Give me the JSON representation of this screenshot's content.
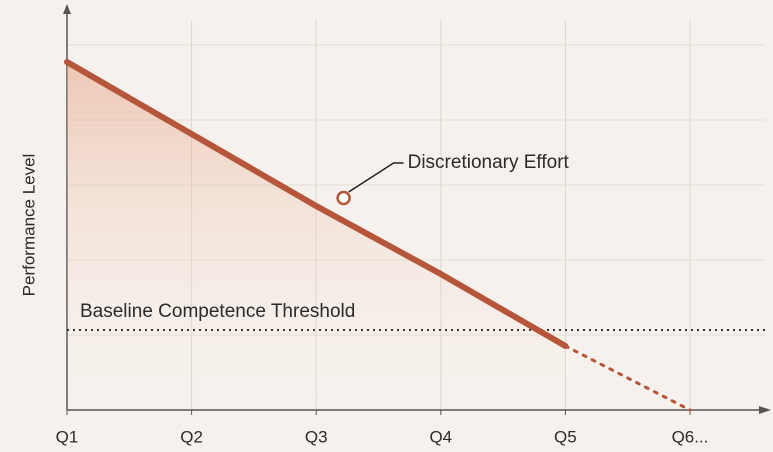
{
  "chart_data": {
    "type": "line",
    "y_label": "Performance Level",
    "categories": [
      "Q1",
      "Q2",
      "Q3",
      "Q4",
      "Q5",
      "Q6..."
    ],
    "series": [
      {
        "color": "#b5553a",
        "style": "solid",
        "values": [
          87,
          69,
          51,
          34,
          16,
          null
        ]
      },
      {
        "color": "#b5553a",
        "style": "dotted",
        "values": [
          null,
          null,
          null,
          null,
          16,
          0
        ]
      }
    ],
    "ylim": [
      0,
      100
    ],
    "threshold": {
      "value": 20,
      "label": "Baseline Competence Threshold"
    },
    "annotation": {
      "text": "Discretionary Effort",
      "x": 2.22,
      "y": 53
    }
  }
}
